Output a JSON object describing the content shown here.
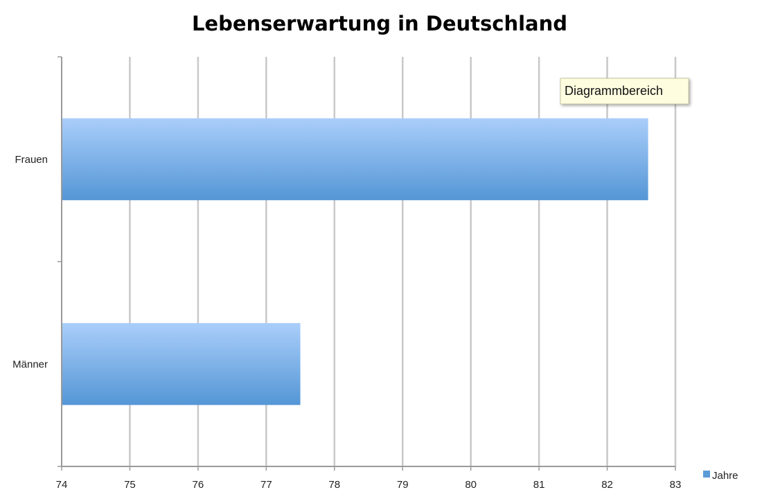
{
  "chart_data": {
    "type": "bar",
    "orientation": "horizontal",
    "title": "Lebenserwartung in Deutschland",
    "xlabel": "",
    "ylabel": "",
    "categories": [
      "Frauen",
      "Männer"
    ],
    "series": [
      {
        "name": "Jahre",
        "values": [
          82.6,
          77.5
        ]
      }
    ],
    "xlim": [
      74,
      83
    ],
    "x_ticks": [
      "74",
      "75",
      "76",
      "77",
      "78",
      "79",
      "80",
      "81",
      "82",
      "83"
    ],
    "grid": true,
    "legend": "right",
    "colors": {
      "bar_top": "#aacefa",
      "bar_bottom": "#5496d6",
      "legend": "#5a9ad8"
    }
  },
  "tooltip": {
    "text": "Diagrammbereich"
  }
}
